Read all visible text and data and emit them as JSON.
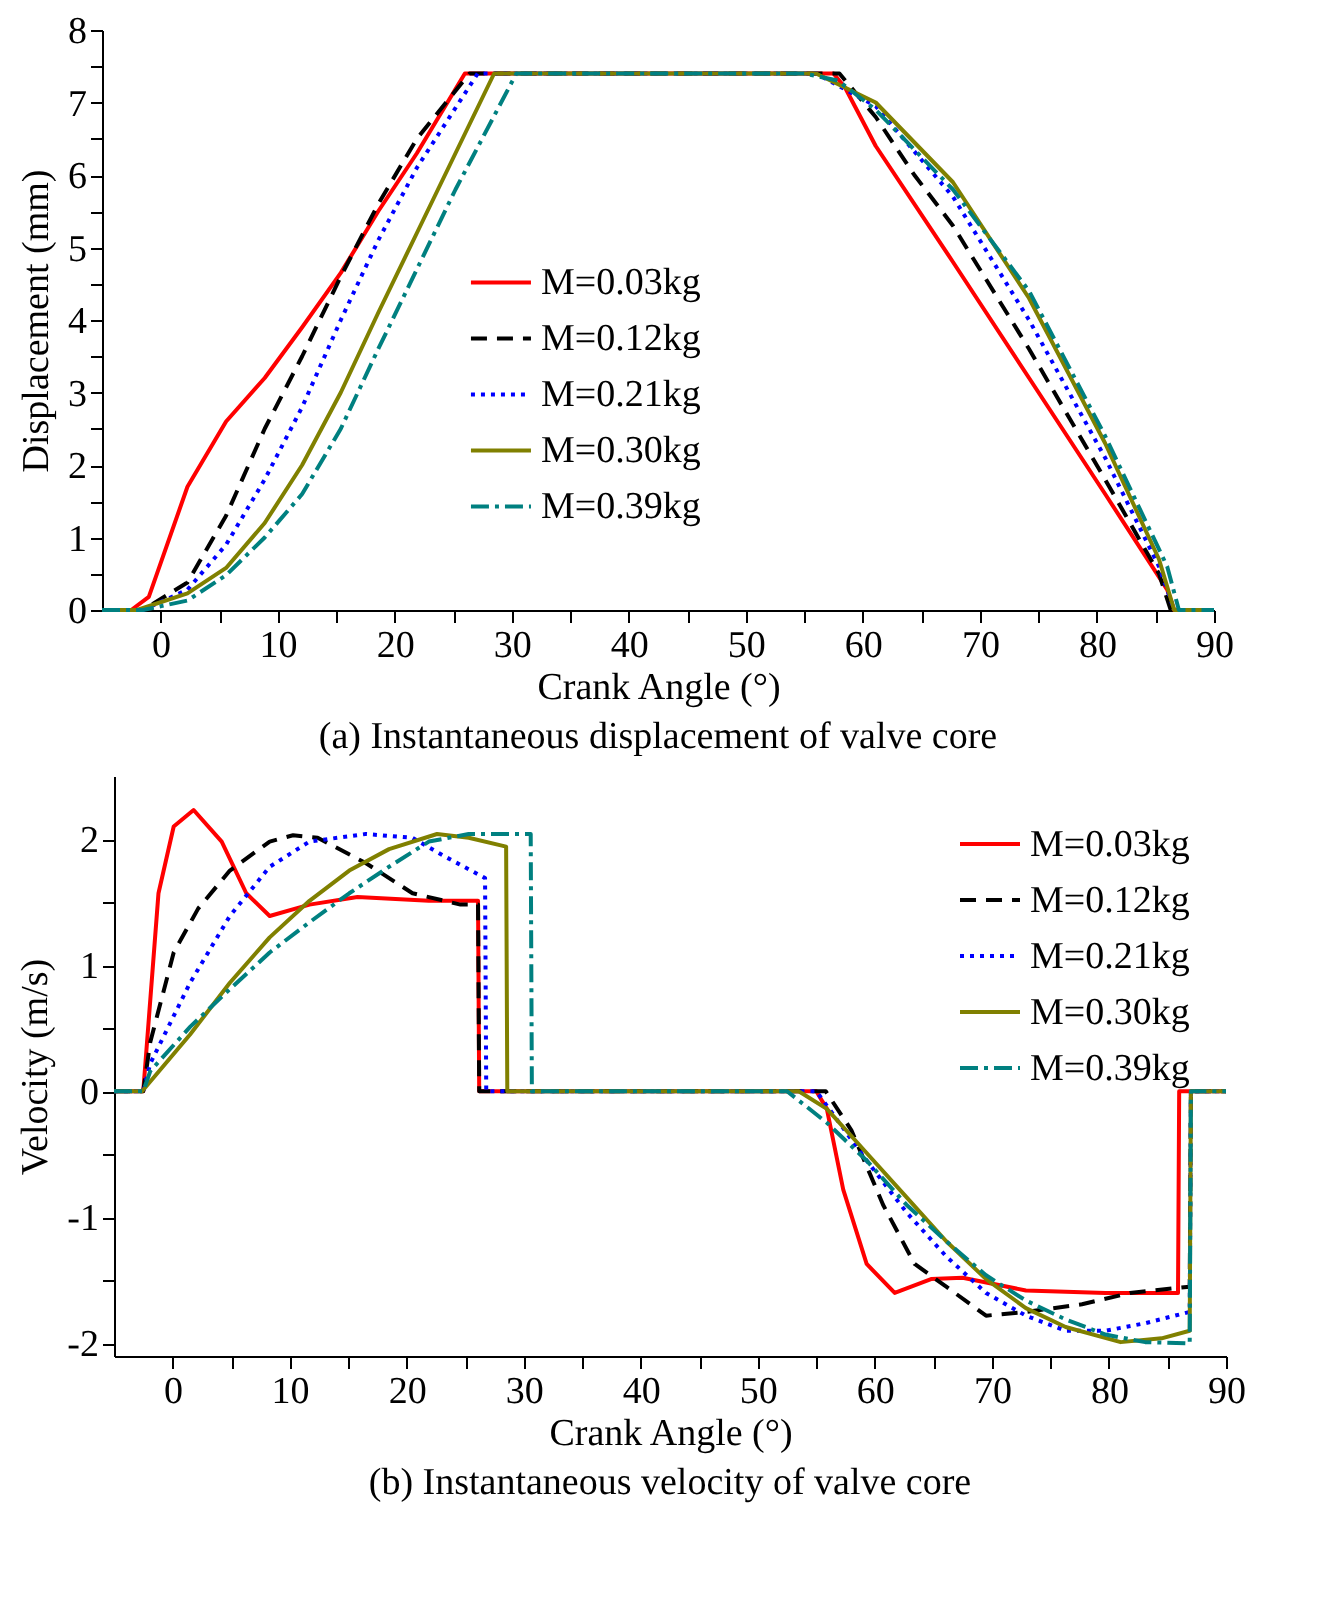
{
  "chart_data": [
    {
      "type": "line",
      "title": "(a) Instantaneous displacement of valve core",
      "xlabel": "Crank Angle (°)",
      "ylabel": "Displacement (mm)",
      "xlim": [
        -5,
        90
      ],
      "ylim": [
        0,
        8
      ],
      "xticks": [
        0,
        {
          "value": 5,
          "label": null
        },
        10,
        {
          "value": 15,
          "label": null
        },
        20,
        {
          "value": 25,
          "label": null
        },
        30,
        {
          "value": 35,
          "label": null
        },
        40,
        {
          "value": 45,
          "label": null
        },
        50,
        {
          "value": 55,
          "label": null
        },
        60,
        {
          "value": 65,
          "label": null
        },
        70,
        {
          "value": 75,
          "label": null
        },
        80,
        {
          "value": 85,
          "label": null
        },
        90
      ],
      "yticks": [
        0,
        {
          "value": 0.5,
          "label": null
        },
        1,
        {
          "value": 1.5,
          "label": null
        },
        2,
        {
          "value": 2.5,
          "label": null
        },
        3,
        {
          "value": 3.5,
          "label": null
        },
        4,
        {
          "value": 4.5,
          "label": null
        },
        5,
        {
          "value": 5.5,
          "label": null
        },
        6,
        {
          "value": 6.5,
          "label": null
        },
        7,
        {
          "value": 7.5,
          "label": null
        },
        8
      ],
      "legend": "center",
      "grid": false,
      "series": [
        {
          "name": "M=0.03kg",
          "color": "#ff0000",
          "line_style": "solid",
          "x": [
            -5,
            -2.5,
            -1,
            2.3,
            5.6,
            8.9,
            12.1,
            15.4,
            18.6,
            21.9,
            26,
            57.5,
            58.5,
            61.1,
            67.7,
            74.2,
            80.7,
            86,
            86.6,
            90
          ],
          "values": [
            0,
            0,
            0.18,
            1.7,
            2.6,
            3.2,
            3.9,
            4.65,
            5.5,
            6.3,
            7.4,
            7.4,
            7.2,
            6.4,
            4.8,
            3.2,
            1.6,
            0.28,
            0,
            0
          ]
        },
        {
          "name": "M=0.12kg",
          "color": "#000000",
          "line_style": "dashed",
          "x": [
            -5,
            -1.5,
            2.3,
            5.6,
            8.9,
            12.1,
            15.4,
            18.6,
            21.9,
            26.4,
            58,
            61.1,
            64.4,
            67.7,
            74.2,
            80.7,
            85.3,
            86.3,
            90
          ],
          "values": [
            0,
            0,
            0.38,
            1.3,
            2.5,
            3.5,
            4.6,
            5.6,
            6.5,
            7.4,
            7.4,
            6.8,
            6.0,
            5.3,
            3.6,
            1.8,
            0.5,
            0,
            0
          ]
        },
        {
          "name": "M=0.21kg",
          "color": "#0000ff",
          "line_style": "dotted",
          "x": [
            -5,
            -1.5,
            2.3,
            5.6,
            8.9,
            12.1,
            15.4,
            18.6,
            21.9,
            27.1,
            56,
            61.1,
            67.7,
            74.2,
            80.7,
            85.3,
            86.6,
            90
          ],
          "values": [
            0,
            0,
            0.28,
            0.9,
            1.8,
            2.8,
            4.0,
            5.1,
            6.1,
            7.4,
            7.4,
            6.95,
            5.7,
            4.0,
            2.1,
            0.6,
            0,
            0
          ]
        },
        {
          "name": "M=0.30kg",
          "color": "#808000",
          "line_style": "solid",
          "x": [
            -5,
            -2,
            2.3,
            5.6,
            8.9,
            12.1,
            15.4,
            18.6,
            21.9,
            25.2,
            28.5,
            56,
            61.1,
            67.7,
            74.2,
            80.7,
            85.3,
            86.6,
            90
          ],
          "values": [
            0,
            0,
            0.23,
            0.58,
            1.2,
            2.0,
            3.0,
            4.1,
            5.2,
            6.3,
            7.4,
            7.4,
            7.0,
            5.9,
            4.3,
            2.3,
            0.7,
            0,
            0
          ]
        },
        {
          "name": "M=0.39kg",
          "color": "#008080",
          "line_style": "dashdot",
          "x": [
            -5,
            -1.5,
            2.3,
            5.6,
            8.9,
            12.1,
            15.4,
            18.6,
            21.9,
            25.2,
            30.4,
            55,
            57.9,
            61.1,
            67.7,
            74.2,
            80.7,
            86,
            87,
            90
          ],
          "values": [
            0,
            0,
            0.13,
            0.48,
            1.0,
            1.6,
            2.5,
            3.6,
            4.7,
            5.8,
            7.4,
            7.4,
            7.3,
            6.9,
            5.8,
            4.4,
            2.4,
            0.6,
            0,
            0
          ]
        }
      ]
    },
    {
      "type": "line",
      "title": "(b) Instantaneous velocity of valve core",
      "xlabel": "Crank Angle (°)",
      "ylabel": "Velocity (m/s)",
      "xlim": [
        -5,
        90
      ],
      "ylim": [
        -2.1,
        2.5
      ],
      "xticks": [
        0,
        {
          "value": 5,
          "label": null
        },
        10,
        {
          "value": 15,
          "label": null
        },
        20,
        {
          "value": 25,
          "label": null
        },
        30,
        {
          "value": 35,
          "label": null
        },
        40,
        {
          "value": 45,
          "label": null
        },
        50,
        {
          "value": 55,
          "label": null
        },
        60,
        {
          "value": 65,
          "label": null
        },
        70,
        {
          "value": 75,
          "label": null
        },
        80,
        {
          "value": 85,
          "label": null
        },
        90
      ],
      "yticks": [
        -2,
        {
          "value": -1.5,
          "label": null
        },
        -1,
        {
          "value": -0.5,
          "label": null
        },
        0,
        {
          "value": 0.5,
          "label": null
        },
        1,
        {
          "value": 1.5,
          "label": null
        },
        2
      ],
      "legend": "top right",
      "grid": false,
      "series": [
        {
          "name": "M=0.03kg",
          "color": "#ff0000",
          "line_style": "solid",
          "x": [
            -5,
            -2.5,
            -1.2,
            0.1,
            1.8,
            4.2,
            6.3,
            8.3,
            11.7,
            15.8,
            21.9,
            26.1,
            26.2,
            55,
            55.9,
            57.3,
            59.3,
            61.7,
            64.8,
            67.5,
            72.9,
            79.7,
            85.9,
            86,
            90
          ],
          "values": [
            0,
            0,
            1.57,
            2.1,
            2.23,
            1.98,
            1.57,
            1.39,
            1.48,
            1.54,
            1.51,
            1.51,
            0,
            0,
            -0.14,
            -0.78,
            -1.37,
            -1.6,
            -1.49,
            -1.48,
            -1.58,
            -1.6,
            -1.6,
            0,
            0
          ]
        },
        {
          "name": "M=0.12kg",
          "color": "#000000",
          "line_style": "dashed",
          "x": [
            -5,
            -2.5,
            -1.9,
            0.1,
            2.2,
            4.9,
            8.3,
            10.3,
            12.4,
            16.5,
            20.5,
            24.6,
            26.1,
            26.2,
            55.8,
            58,
            60.7,
            63.4,
            66.1,
            69.5,
            72.9,
            77.7,
            81.8,
            86.9,
            87,
            90
          ],
          "values": [
            0,
            0,
            0.39,
            1.1,
            1.45,
            1.75,
            1.98,
            2.03,
            2.01,
            1.81,
            1.57,
            1.48,
            1.48,
            0,
            0,
            -0.31,
            -0.9,
            -1.37,
            -1.55,
            -1.78,
            -1.75,
            -1.69,
            -1.6,
            -1.55,
            0,
            0
          ]
        },
        {
          "name": "M=0.21kg",
          "color": "#0000ff",
          "line_style": "dotted",
          "x": [
            -5,
            -2.5,
            -1.9,
            1.5,
            4.9,
            8.3,
            11.7,
            16.5,
            20.5,
            23.3,
            26.7,
            26.8,
            55,
            59.3,
            62.7,
            66.1,
            69.5,
            72.9,
            76.3,
            79.7,
            83.1,
            86.9,
            87,
            90
          ],
          "values": [
            0,
            0,
            0.22,
            0.86,
            1.39,
            1.78,
            1.98,
            2.04,
            2.01,
            1.86,
            1.69,
            0,
            0,
            -0.55,
            -0.96,
            -1.31,
            -1.6,
            -1.78,
            -1.9,
            -1.9,
            -1.84,
            -1.75,
            0,
            0
          ]
        },
        {
          "name": "M=0.30kg",
          "color": "#808000",
          "line_style": "solid",
          "x": [
            -5,
            -2.6,
            1.5,
            4.9,
            8.3,
            11.7,
            15.1,
            18.5,
            22.6,
            25.3,
            28.5,
            28.6,
            53.5,
            55.9,
            59.3,
            62.7,
            66.1,
            69.5,
            72.9,
            76.3,
            81,
            84.5,
            86.9,
            87,
            90
          ],
          "values": [
            0,
            0,
            0.45,
            0.86,
            1.22,
            1.51,
            1.75,
            1.92,
            2.04,
            2.01,
            1.94,
            0,
            0,
            -0.14,
            -0.49,
            -0.84,
            -1.19,
            -1.49,
            -1.72,
            -1.87,
            -1.99,
            -1.96,
            -1.9,
            0,
            0
          ]
        },
        {
          "name": "M=0.39kg",
          "color": "#008080",
          "line_style": "dashdot",
          "x": [
            -5,
            -2.5,
            -1.9,
            1.5,
            4.9,
            8.3,
            11.7,
            15.1,
            18.5,
            21.9,
            25.3,
            30.6,
            30.7,
            52.5,
            55.9,
            59.3,
            62.7,
            66.1,
            69.5,
            72.9,
            76.3,
            79.7,
            83.1,
            86.9,
            87,
            90
          ],
          "values": [
            0,
            0,
            0.16,
            0.51,
            0.81,
            1.1,
            1.34,
            1.57,
            1.78,
            1.98,
            2.04,
            2.04,
            0,
            0,
            -0.25,
            -0.55,
            -0.9,
            -1.19,
            -1.46,
            -1.66,
            -1.81,
            -1.93,
            -1.99,
            -2.0,
            0,
            0
          ]
        }
      ]
    }
  ]
}
